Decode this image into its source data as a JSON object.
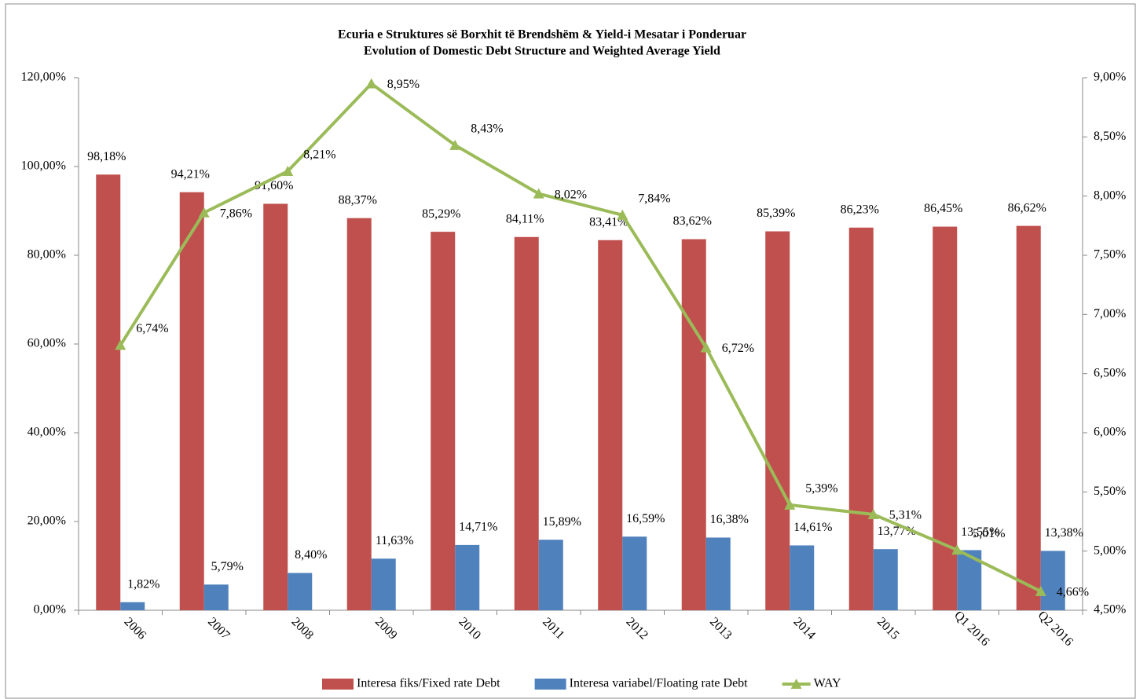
{
  "chart_data": {
    "type": "bar_line",
    "title": "Ecuria e Struktures së Borxhit të Brendshëm & Yield-i Mesatar i Ponderuar",
    "subtitle": "Evolution of Domestic Debt Structure and Weighted Average Yield",
    "categories": [
      "2006",
      "2007",
      "2008",
      "2009",
      "2010",
      "2011",
      "2012",
      "2013",
      "2014",
      "2015",
      "Q1 2016",
      "Q2 2016"
    ],
    "series": [
      {
        "name": "Interesa fiks/Fixed rate Debt",
        "type": "bar",
        "color": "#c0504d",
        "values": [
          98.18,
          94.21,
          91.6,
          88.37,
          85.29,
          84.11,
          83.41,
          83.62,
          85.39,
          86.23,
          86.45,
          86.62
        ],
        "value_labels": [
          "98,18%",
          "94,21%",
          "91,60%",
          "88,37%",
          "85,29%",
          "84,11%",
          "83,41%",
          "83,62%",
          "85,39%",
          "86,23%",
          "86,45%",
          "86,62%"
        ]
      },
      {
        "name": "Interesa variabel/Floating rate Debt",
        "type": "bar",
        "color": "#4f81bd",
        "values": [
          1.82,
          5.79,
          8.4,
          11.63,
          14.71,
          15.89,
          16.59,
          16.38,
          14.61,
          13.77,
          13.55,
          13.38
        ],
        "value_labels": [
          "1,82%",
          "5,79%",
          "8,40%",
          "11,63%",
          "14,71%",
          "15,89%",
          "16,59%",
          "16,38%",
          "14,61%",
          "13,77%",
          "13,55%",
          "13,38%"
        ]
      },
      {
        "name": "WAY",
        "type": "line",
        "axis": "y2",
        "color": "#9bbb59",
        "values": [
          6.74,
          7.86,
          8.21,
          8.95,
          8.43,
          8.02,
          7.84,
          6.72,
          5.39,
          5.31,
          5.01,
          4.66
        ],
        "value_labels": [
          "6,74%",
          "7,86%",
          "8,21%",
          "8,95%",
          "8,43%",
          "8,02%",
          "7,84%",
          "6,72%",
          "5,39%",
          "5,31%",
          "5,01%",
          "4,66%"
        ]
      }
    ],
    "ylim": [
      0,
      120
    ],
    "yticks": [
      {
        "value": 0,
        "label": "0,00%"
      },
      {
        "value": 20,
        "label": "20,00%"
      },
      {
        "value": 40,
        "label": "40,00%"
      },
      {
        "value": 60,
        "label": "60,00%"
      },
      {
        "value": 80,
        "label": "80,00%"
      },
      {
        "value": 100,
        "label": "100,00%"
      },
      {
        "value": 120,
        "label": "120,00%"
      }
    ],
    "y2lim": [
      4.5,
      9.0
    ],
    "y2ticks": [
      {
        "value": 4.5,
        "label": "4,50%"
      },
      {
        "value": 5.0,
        "label": "5,00%"
      },
      {
        "value": 5.5,
        "label": "5,50%"
      },
      {
        "value": 6.0,
        "label": "6,00%"
      },
      {
        "value": 6.5,
        "label": "6,50%"
      },
      {
        "value": 7.0,
        "label": "7,00%"
      },
      {
        "value": 7.5,
        "label": "7,50%"
      },
      {
        "value": 8.0,
        "label": "8,00%"
      },
      {
        "value": 8.5,
        "label": "8,50%"
      },
      {
        "value": 9.0,
        "label": "9,00%"
      }
    ],
    "legend": "bottom"
  }
}
